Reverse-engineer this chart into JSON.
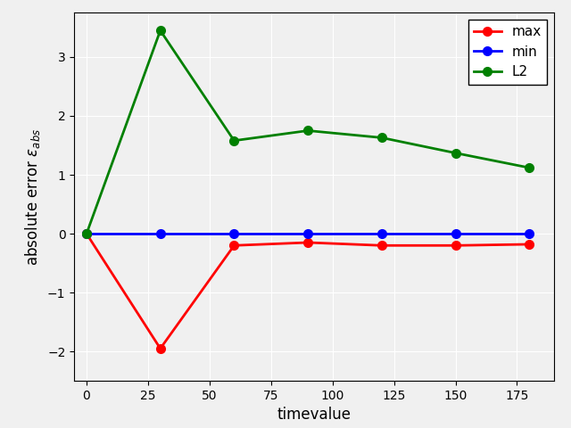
{
  "x": [
    0,
    30,
    60,
    90,
    120,
    150,
    180
  ],
  "max_y": [
    0.0,
    -1.95,
    -0.2,
    -0.15,
    -0.2,
    -0.2,
    -0.18
  ],
  "min_y": [
    0.0,
    0.0,
    0.0,
    0.0,
    0.0,
    0.0,
    0.0
  ],
  "l2_y": [
    0.0,
    3.45,
    1.58,
    1.75,
    1.63,
    1.37,
    1.12
  ],
  "max_color": "#ff0000",
  "min_color": "#0000ff",
  "l2_color": "#008000",
  "xlabel": "timevalue",
  "marker": "o",
  "linewidth": 2,
  "markersize": 7,
  "grid": true,
  "plot_bg_color": "#f0f0f0",
  "fig_bg_color": "#f0f0f0",
  "xlim": [
    -5,
    190
  ],
  "ylim": [
    -2.5,
    3.75
  ],
  "xticks": [
    0,
    25,
    50,
    75,
    100,
    125,
    150,
    175
  ],
  "legend_labels": [
    "max",
    "min",
    "L2"
  ]
}
